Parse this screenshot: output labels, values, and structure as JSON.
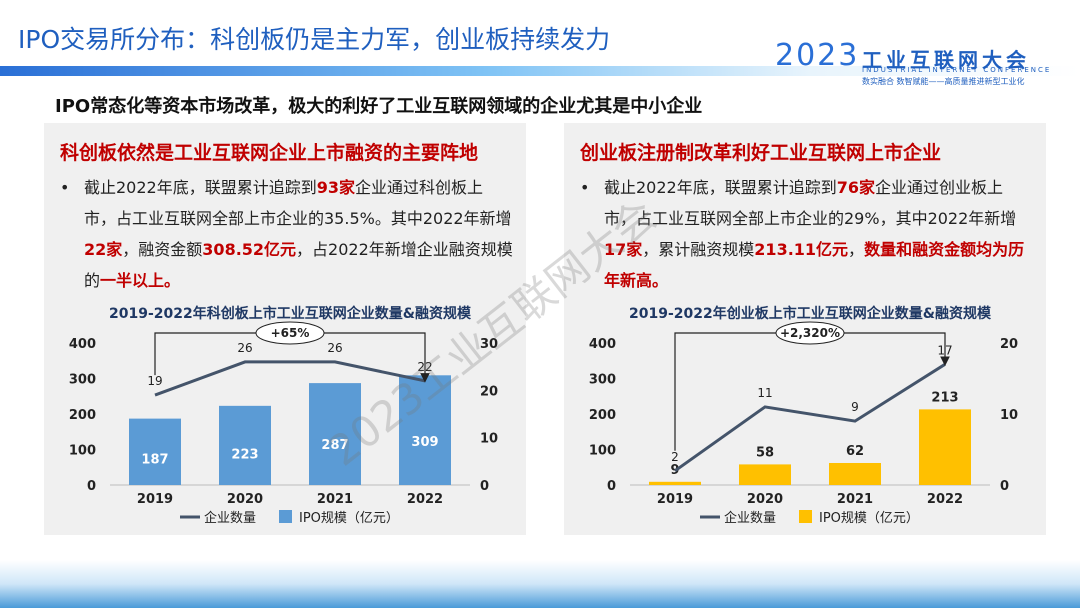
{
  "header": {
    "title": "IPO交易所分布：科创板仍是主力军，创业板持续发力",
    "logo_year": "2023",
    "logo_title": "工业互联网大会",
    "logo_subtitle": "INDUSTRIAL INTERNET CONFERENCE",
    "logo_tagline": "数实融合  数智赋能——高质量推进新型工业化"
  },
  "subtitle": "IPO常态化等资本市场改革，极大的利好了工业互联网领域的企业尤其是中小企业",
  "panels": [
    {
      "heading": "科创板依然是工业互联网企业上市融资的主要阵地",
      "bullet": [
        {
          "text": "截止2022年底，联盟累计追踪到",
          "style": "normal"
        },
        {
          "text": "93家",
          "style": "red"
        },
        {
          "text": "企业通过科创板上市，占工业互联网全部上市企业的35.5%。其中2022年新增",
          "style": "normal"
        },
        {
          "text": "22家",
          "style": "red"
        },
        {
          "text": "，融资金额",
          "style": "normal"
        },
        {
          "text": "308.52亿元",
          "style": "red"
        },
        {
          "text": "，占2022年新增企业融资规模的",
          "style": "normal"
        },
        {
          "text": "一半以上。",
          "style": "red"
        }
      ]
    },
    {
      "heading": "创业板注册制改革利好工业互联网上市企业",
      "bullet": [
        {
          "text": "截止2022年底，联盟累计追踪到",
          "style": "normal"
        },
        {
          "text": "76家",
          "style": "red"
        },
        {
          "text": "企业通过创业板上市，占工业互联网全部上市企业的29%，其中2022年新增",
          "style": "normal"
        },
        {
          "text": "17家",
          "style": "red"
        },
        {
          "text": "，累计融资规模",
          "style": "normal"
        },
        {
          "text": "213.11亿元",
          "style": "red"
        },
        {
          "text": "，",
          "style": "normal"
        },
        {
          "text": "数量和融资金额均为历年新高。",
          "style": "red"
        }
      ]
    }
  ],
  "chart_data": [
    {
      "type": "combo",
      "title": "2019-2022年科创板上市工业互联网企业数量&融资规模",
      "categories": [
        "2019",
        "2020",
        "2021",
        "2022"
      ],
      "series": [
        {
          "name": "企业数量",
          "type": "line",
          "axis": "y2",
          "color": "#44546a",
          "values": [
            19,
            26,
            26,
            22
          ]
        },
        {
          "name": "IPO规模（亿元）",
          "type": "bar",
          "color": "#5b9bd5",
          "values": [
            187,
            223,
            287,
            309
          ],
          "label_position": "inside"
        }
      ],
      "ylim": [
        0,
        400
      ],
      "yticks": [
        0,
        100,
        200,
        300,
        400
      ],
      "y2lim": [
        0,
        30
      ],
      "y2ticks": [
        0,
        10,
        20,
        30
      ],
      "annotation": "+65%"
    },
    {
      "type": "combo",
      "title": "2019-2022年创业板上市工业互联网企业数量&融资规模",
      "categories": [
        "2019",
        "2020",
        "2021",
        "2022"
      ],
      "series": [
        {
          "name": "企业数量",
          "type": "line",
          "axis": "y2",
          "color": "#44546a",
          "values": [
            2,
            11,
            9,
            17
          ]
        },
        {
          "name": "IPO规模（亿元）",
          "type": "bar",
          "color": "#ffc000",
          "values": [
            9,
            58,
            62,
            213
          ],
          "label_position": "above"
        }
      ],
      "ylim": [
        0,
        400
      ],
      "yticks": [
        0,
        100,
        200,
        300,
        400
      ],
      "y2lim": [
        0,
        20
      ],
      "y2ticks": [
        0,
        10,
        20
      ],
      "annotation": "+2,320%"
    }
  ],
  "watermark": "2023工业互联网大会"
}
